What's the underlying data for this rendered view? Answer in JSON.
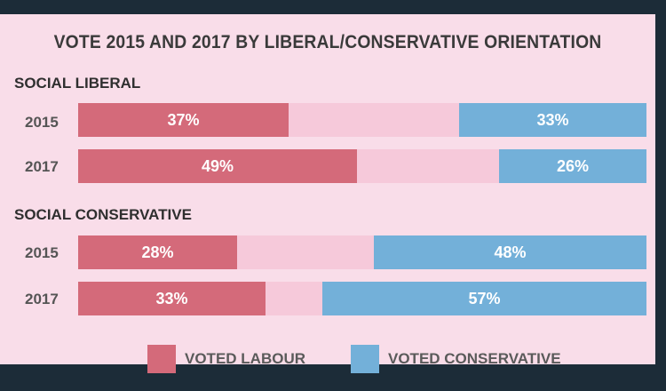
{
  "chart_data": {
    "type": "bar",
    "orientation": "horizontal-stacked-split",
    "title": "VOTE 2015 AND 2017 BY LIBERAL/CONSERVATIVE ORIENTATION",
    "legend": [
      "VOTED LABOUR",
      "VOTED CONSERVATIVE"
    ],
    "legend_placement": "bottom",
    "colors": {
      "labour": "#d46a7a",
      "conservative": "#73b0d9",
      "remainder": "#f6c9da",
      "background": "#f9dde9",
      "frame": "#1c2c38"
    },
    "groups": [
      {
        "label": "SOCIAL LIBERAL",
        "rows": [
          {
            "year": "2015",
            "labour": 37,
            "conservative": 33,
            "labour_label": "37%",
            "conservative_label": "33%"
          },
          {
            "year": "2017",
            "labour": 49,
            "conservative": 26,
            "labour_label": "49%",
            "conservative_label": "26%"
          }
        ]
      },
      {
        "label": "SOCIAL CONSERVATIVE",
        "rows": [
          {
            "year": "2015",
            "labour": 28,
            "conservative": 48,
            "labour_label": "28%",
            "conservative_label": "48%"
          },
          {
            "year": "2017",
            "labour": 33,
            "conservative": 57,
            "labour_label": "33%",
            "conservative_label": "57%"
          }
        ]
      }
    ],
    "xlim": [
      0,
      100
    ]
  }
}
